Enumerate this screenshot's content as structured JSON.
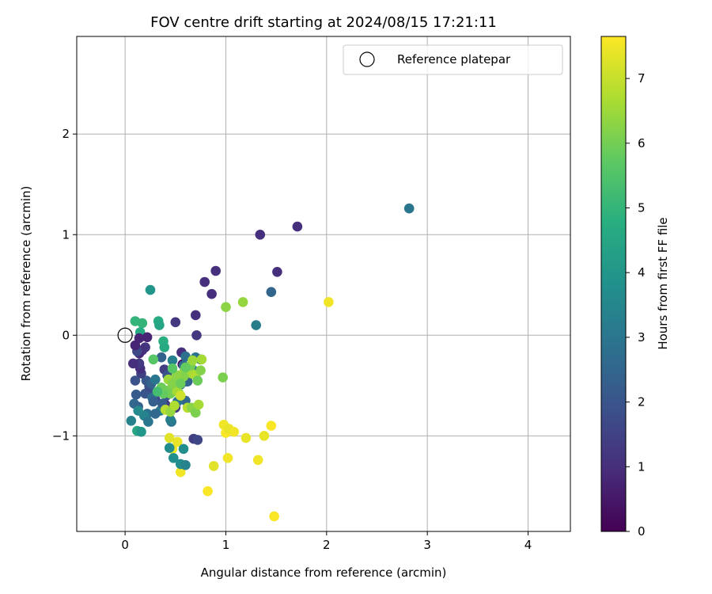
{
  "chart_data": {
    "type": "scatter",
    "title": "FOV centre drift starting at 2024/08/15 17:21:11",
    "xlabel": "Angular distance from reference (arcmin)",
    "ylabel": "Rotation from reference (arcmin)",
    "xlim": [
      -0.48,
      4.42
    ],
    "ylim": [
      -1.95,
      2.97
    ],
    "xticks": [
      0,
      1,
      2,
      3,
      4
    ],
    "xtick_labels": [
      "0",
      "1",
      "2",
      "3",
      "4"
    ],
    "yticks": [
      -1,
      0,
      1,
      2
    ],
    "ytick_labels": [
      "−1",
      "0",
      "1",
      "2"
    ],
    "grid": true,
    "legend": {
      "position": "upper right",
      "entries": [
        {
          "label": "Reference platepar",
          "marker": "open-circle"
        }
      ]
    },
    "colormap": "viridis",
    "colorbar": {
      "label": "Hours from first FF file",
      "range": [
        0,
        7.65
      ],
      "ticks": [
        0,
        1,
        2,
        3,
        4,
        5,
        6,
        7
      ],
      "tick_labels": [
        "0",
        "1",
        "2",
        "3",
        "4",
        "5",
        "6",
        "7"
      ]
    },
    "reference_point": {
      "x": 0,
      "y": 0,
      "label": "Reference platepar"
    },
    "series": [
      {
        "x": [
          2.82,
          1.34,
          1.71,
          1.51,
          1.45,
          0.9,
          0.79,
          0.86,
          0.25,
          0.1,
          0.17,
          0.15,
          0.22,
          0.33,
          0.34,
          0.14,
          0.5,
          0.7,
          0.71,
          0.38,
          0.39,
          0.56,
          0.57,
          0.47,
          0.6,
          0.7,
          0.58,
          0.39,
          0.55,
          0.75,
          0.68,
          0.61,
          0.6,
          0.5,
          0.4,
          0.3,
          0.24,
          0.21,
          0.16,
          0.15,
          0.14,
          0.08,
          0.1,
          0.09,
          0.13,
          0.11,
          0.2,
          0.24,
          0.26,
          0.3,
          0.27,
          0.28,
          0.22,
          0.19,
          0.35,
          0.46,
          0.45,
          0.52,
          0.48,
          0.42,
          0.44,
          0.36,
          0.2,
          0.17,
          0.14,
          0.12,
          0.1,
          0.06,
          0.12,
          0.16,
          0.13,
          0.23,
          0.3,
          0.37,
          0.41,
          0.47,
          0.57,
          0.62,
          0.55,
          0.48,
          0.53,
          0.45,
          0.59,
          0.66,
          0.7,
          0.75,
          0.72,
          0.65,
          0.67,
          0.76,
          0.51,
          0.4,
          0.45,
          0.49,
          0.55,
          0.5,
          0.43,
          0.53,
          0.58,
          0.62,
          1.0,
          1.17,
          0.97,
          1.3,
          2.02,
          1.0,
          0.98,
          1.03,
          1.08,
          1.2,
          1.38,
          1.45,
          1.32,
          1.02,
          0.52,
          0.44,
          0.47,
          0.55,
          0.88,
          0.82,
          1.48,
          0.58,
          0.44,
          0.48,
          0.55,
          0.6,
          0.68,
          0.72,
          0.51,
          0.42,
          0.38,
          0.36,
          0.47,
          0.66,
          0.7,
          0.73,
          0.55,
          0.6,
          0.47,
          0.32,
          0.28
        ],
        "y": [
          1.26,
          1.0,
          1.08,
          0.63,
          0.43,
          0.64,
          0.53,
          0.41,
          0.45,
          0.14,
          0.12,
          0.03,
          -0.02,
          0.14,
          0.1,
          -0.03,
          0.13,
          0.2,
          0.0,
          -0.06,
          -0.12,
          -0.17,
          -0.29,
          -0.25,
          -0.21,
          -0.22,
          -0.3,
          -0.34,
          -0.4,
          -0.24,
          -0.35,
          -0.46,
          -0.65,
          -0.72,
          -0.69,
          -0.64,
          -0.55,
          -0.45,
          -0.38,
          -0.33,
          -0.28,
          -0.28,
          -0.45,
          -0.68,
          -0.71,
          -0.59,
          -0.58,
          -0.51,
          -0.48,
          -0.44,
          -0.62,
          -0.66,
          -0.78,
          -0.8,
          -0.75,
          -0.86,
          -0.84,
          -0.66,
          -0.45,
          -0.4,
          -0.55,
          -0.22,
          -0.12,
          -0.15,
          -0.18,
          -0.16,
          -0.1,
          -0.85,
          -0.95,
          -0.96,
          -0.75,
          -0.86,
          -0.78,
          -0.68,
          -0.6,
          -0.54,
          -0.4,
          -0.46,
          -0.49,
          -0.51,
          -0.57,
          -0.58,
          -0.35,
          -0.38,
          -0.4,
          -0.35,
          -0.45,
          -0.3,
          -0.25,
          -0.24,
          -0.55,
          -0.74,
          -0.76,
          -0.7,
          -0.6,
          -0.46,
          -0.44,
          -0.4,
          -0.41,
          -0.72,
          0.28,
          0.33,
          -0.42,
          0.1,
          0.33,
          -0.97,
          -0.89,
          -0.93,
          -0.96,
          -1.02,
          -1.0,
          -0.9,
          -1.24,
          -1.22,
          -1.06,
          -1.02,
          -1.13,
          -1.36,
          -1.3,
          -1.55,
          -1.8,
          -1.13,
          -1.12,
          -1.22,
          -1.28,
          -1.29,
          -1.03,
          -1.04,
          -0.4,
          -0.55,
          -0.58,
          -0.52,
          -0.48,
          -0.72,
          -0.77,
          -0.69,
          -0.48,
          -0.32,
          -0.33,
          -0.56,
          -0.24
        ],
        "hours": [
          3.0,
          1.0,
          1.0,
          1.0,
          2.5,
          1.0,
          1.0,
          1.0,
          4.0,
          5.0,
          5.0,
          4.7,
          0.8,
          4.7,
          4.5,
          0.8,
          1.2,
          1.0,
          1.2,
          4.8,
          4.6,
          1.0,
          0.2,
          3.3,
          2.8,
          2.9,
          2.6,
          1.4,
          1.6,
          2.5,
          3.3,
          2.0,
          2.6,
          1.3,
          1.2,
          1.6,
          1.6,
          2.1,
          1.4,
          1.0,
          1.3,
          1.0,
          1.9,
          2.6,
          2.4,
          2.2,
          2.0,
          1.8,
          2.4,
          3.0,
          2.7,
          2.3,
          2.8,
          3.4,
          3.2,
          3.0,
          3.2,
          2.9,
          2.0,
          2.0,
          2.4,
          2.4,
          1.2,
          1.1,
          0.9,
          1.7,
          0.8,
          3.4,
          4.5,
          4.0,
          3.6,
          3.0,
          2.6,
          2.2,
          2.0,
          2.3,
          1.8,
          2.4,
          2.7,
          3.0,
          6.3,
          6.0,
          6.3,
          6.6,
          6.7,
          6.2,
          5.9,
          6.0,
          6.5,
          6.6,
          6.6,
          6.8,
          6.4,
          6.7,
          7.1,
          6.6,
          6.5,
          6.5,
          6.2,
          6.8,
          6.3,
          6.4,
          6.1,
          3.2,
          7.5,
          7.6,
          7.5,
          7.4,
          7.5,
          7.4,
          7.4,
          7.6,
          7.5,
          7.5,
          7.4,
          7.3,
          7.4,
          7.5,
          7.3,
          7.6,
          7.6,
          3.7,
          3.7,
          3.8,
          3.7,
          3.4,
          1.4,
          1.6,
          6.3,
          6.0,
          5.8,
          5.9,
          6.2,
          6.3,
          6.1,
          6.6,
          5.9,
          5.8,
          5.6,
          5.3,
          5.6
        ]
      }
    ]
  }
}
